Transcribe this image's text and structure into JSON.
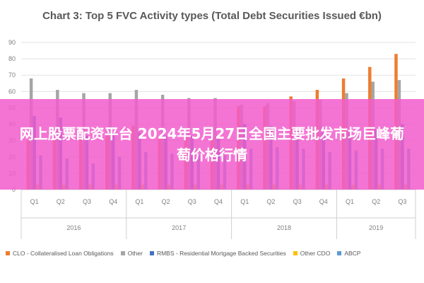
{
  "chart_data": {
    "type": "bar",
    "title": "Chart 3: Top 5 FVC Activity types (Total Debt Securities Issued €bn)",
    "ylim": [
      0,
      90
    ],
    "yticks": [
      0,
      10,
      20,
      30,
      40,
      50,
      60,
      70,
      80,
      90
    ],
    "grid": true,
    "legend_position": "bottom",
    "categories": [
      "Q1",
      "Q2",
      "Q3",
      "Q4",
      "Q1",
      "Q2",
      "Q3",
      "Q4",
      "Q1",
      "Q2",
      "Q3",
      "Q4",
      "Q1",
      "Q2",
      "Q3"
    ],
    "years": [
      {
        "label": "2016",
        "quarters": 4
      },
      {
        "label": "2017",
        "quarters": 4
      },
      {
        "label": "2018",
        "quarters": 4
      },
      {
        "label": "2019",
        "quarters": 3
      }
    ],
    "series": [
      {
        "name": "CLO - Collateralised Loan Obligations",
        "color": "#ED7D31",
        "values": [
          30,
          31,
          31,
          33,
          39,
          33,
          33,
          32,
          51,
          51,
          57,
          61,
          68,
          75,
          83
        ]
      },
      {
        "name": "Other",
        "color": "#A5A5A5",
        "values": [
          68,
          61,
          59,
          59,
          61,
          58,
          56,
          56,
          52,
          53,
          54,
          55,
          59,
          66,
          67
        ]
      },
      {
        "name": "RMBS - Residential Mortgage Backed Securities",
        "color": "#4472C4",
        "values": [
          45,
          44,
          33,
          35,
          35,
          33,
          33,
          33,
          40,
          39,
          36,
          35,
          35,
          37,
          40
        ]
      },
      {
        "name": "Other CDO",
        "color": "#FFC000",
        "values": [
          3,
          3,
          3,
          3,
          3,
          3,
          3,
          3,
          3,
          3,
          3,
          3,
          3,
          3,
          3
        ]
      },
      {
        "name": "ABCP",
        "color": "#5B9BD5",
        "values": [
          21,
          19,
          16,
          20,
          23,
          22,
          21,
          21,
          25,
          26,
          25,
          23,
          24,
          25,
          25
        ]
      }
    ]
  },
  "banner": {
    "text": "网上股票配资平台 2024年5月27日全国主要批发市场巨峰葡萄价格行情"
  }
}
